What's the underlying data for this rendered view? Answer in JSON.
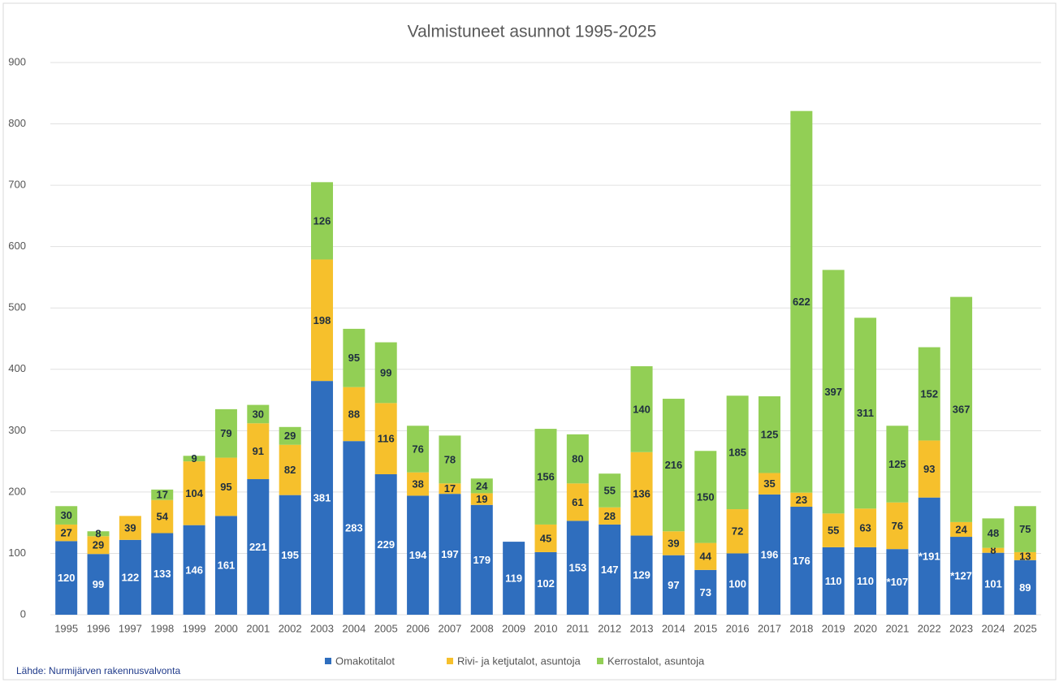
{
  "chart_data": {
    "type": "stacked_bar",
    "title": "Valmistuneet asunnot 1995-2025",
    "categories": [
      "1995",
      "1996",
      "1997",
      "1998",
      "1999",
      "2000",
      "2001",
      "2002",
      "2003",
      "2004",
      "2005",
      "2006",
      "2007",
      "2008",
      "2009",
      "2010",
      "2011",
      "2012",
      "2013",
      "2014",
      "2015",
      "2016",
      "2017",
      "2018",
      "2019",
      "2020",
      "2021",
      "2022",
      "2023",
      "2024",
      "2025"
    ],
    "series": [
      {
        "name": "Omakotitalot",
        "color": "#2f6ebe",
        "label_color": "#ffffff",
        "values": [
          120,
          99,
          122,
          133,
          146,
          161,
          221,
          195,
          381,
          283,
          229,
          194,
          197,
          179,
          119,
          102,
          153,
          147,
          129,
          97,
          73,
          100,
          196,
          176,
          110,
          110,
          107,
          191,
          127,
          101,
          89
        ],
        "value_labels": [
          "120",
          "99",
          "122",
          "133",
          "146",
          "161",
          "221",
          "195",
          "381",
          "283",
          "229",
          "194",
          "197",
          "179",
          "119",
          "102",
          "153",
          "147",
          "129",
          "97",
          "73",
          "100",
          "196",
          "176",
          "110",
          "110",
          "*107",
          "*191",
          "*127",
          "101",
          "89"
        ]
      },
      {
        "name": "Rivi- ja ketjutalot, asuntoja",
        "color": "#f6c02c",
        "label_color": "#1f2f40",
        "values": [
          27,
          29,
          39,
          54,
          104,
          95,
          91,
          82,
          198,
          88,
          116,
          38,
          17,
          19,
          null,
          45,
          61,
          28,
          136,
          39,
          44,
          72,
          35,
          23,
          55,
          63,
          76,
          93,
          24,
          8,
          13
        ]
      },
      {
        "name": "Kerrostalot, asuntoja",
        "color": "#92cf55",
        "label_color": "#1f2f40",
        "values": [
          30,
          8,
          null,
          17,
          9,
          79,
          30,
          29,
          126,
          95,
          99,
          76,
          78,
          24,
          null,
          156,
          80,
          55,
          140,
          216,
          150,
          185,
          125,
          622,
          397,
          311,
          125,
          152,
          367,
          48,
          75
        ]
      }
    ],
    "ylim": [
      0,
      900
    ],
    "yticks": [
      0,
      100,
      200,
      300,
      400,
      500,
      600,
      700,
      800,
      900
    ],
    "grid": true,
    "legend": "bottom",
    "source": "Lähde: Nurmijärven rakennusvalvonta"
  }
}
